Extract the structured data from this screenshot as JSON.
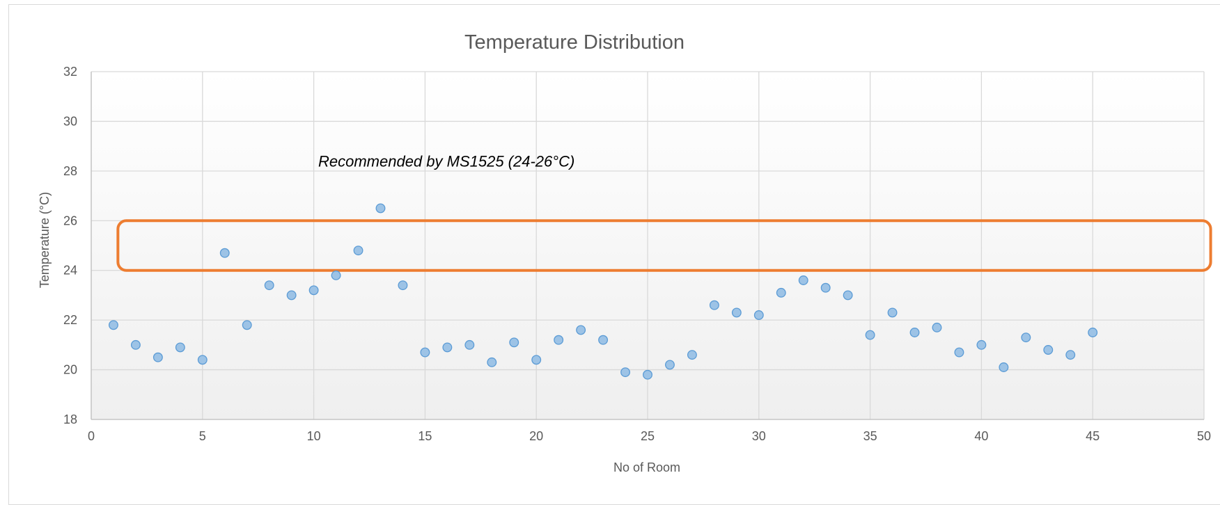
{
  "chart_data": {
    "type": "scatter",
    "title": "Temperature Distribution",
    "xlabel": "No of Room",
    "ylabel": "Temperature (°C)",
    "xlim": [
      0,
      50
    ],
    "ylim": [
      18,
      32
    ],
    "xticks": [
      0,
      5,
      10,
      15,
      20,
      25,
      30,
      35,
      40,
      45,
      50
    ],
    "yticks": [
      18,
      20,
      22,
      24,
      26,
      28,
      30,
      32
    ],
    "grid": true,
    "legend": "none",
    "series": [
      {
        "color": "#9dc3e6",
        "edge_color": "#5b9bd5",
        "x": [
          1,
          2,
          3,
          4,
          5,
          6,
          7,
          8,
          9,
          10,
          11,
          12,
          13,
          14,
          15,
          16,
          17,
          18,
          19,
          20,
          21,
          22,
          23,
          24,
          25,
          26,
          27,
          28,
          29,
          30,
          31,
          32,
          33,
          34,
          35,
          36,
          37,
          38,
          39,
          40,
          41,
          42,
          43,
          44,
          45
        ],
        "y": [
          21.8,
          21.0,
          20.5,
          20.9,
          20.4,
          24.7,
          21.8,
          23.4,
          23.0,
          23.2,
          23.8,
          24.8,
          26.5,
          23.4,
          20.7,
          20.9,
          21.0,
          20.3,
          21.1,
          20.4,
          21.2,
          21.6,
          21.2,
          19.9,
          19.8,
          20.2,
          20.6,
          22.6,
          22.3,
          22.2,
          23.1,
          23.6,
          23.3,
          23.0,
          21.4,
          22.3,
          21.5,
          21.7,
          20.7,
          21.0,
          20.1,
          21.3,
          20.8,
          20.6,
          21.5
        ]
      }
    ],
    "annotations": [
      {
        "text": "Recommended by MS1525 (24-26°C)",
        "band": [
          24,
          26
        ],
        "band_x": [
          1.2,
          50.3
        ],
        "color": "#ed7d31",
        "label_at": [
          10.2,
          28.4
        ]
      }
    ]
  }
}
